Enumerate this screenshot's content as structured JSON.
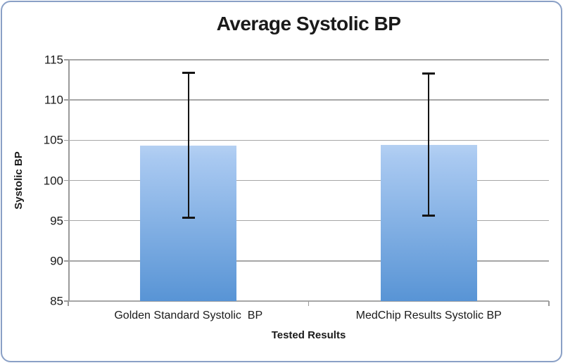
{
  "frame": {
    "border_color": "#8aa0c6"
  },
  "chart_data": {
    "type": "bar",
    "title": "Average Systolic BP",
    "xlabel": "Tested Results",
    "ylabel": "Systolic BP",
    "categories": [
      "Golden Standard Systolic  BP",
      "MedChip Results Systolic BP"
    ],
    "values": [
      104.3,
      104.4
    ],
    "error_bars": [
      {
        "low": 95.3,
        "high": 113.4
      },
      {
        "low": 95.6,
        "high": 113.3
      }
    ],
    "ylim": [
      85,
      115
    ],
    "yticks": [
      85,
      90,
      95,
      100,
      105,
      110,
      115
    ],
    "grid": true,
    "legend": "none",
    "bar_color_top": "#a9c9f1",
    "bar_color_bottom": "#5894d5",
    "gridline_color": "#a6a6a6",
    "axis_line_color": "#9a9a9a",
    "error_bar_color": "#141414",
    "bar_width_fraction": 0.2
  }
}
